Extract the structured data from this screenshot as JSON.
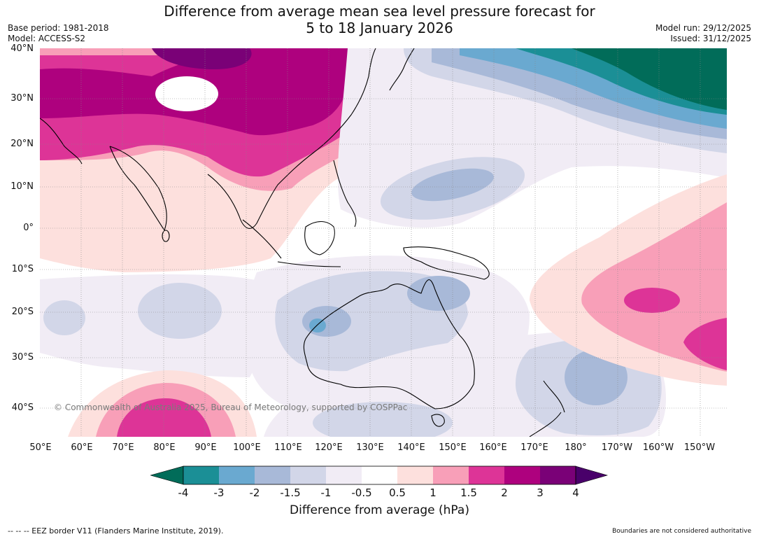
{
  "title_line1": "Difference from average mean sea level pressure forecast for",
  "title_line2": "5 to 18 January 2026",
  "meta_left": {
    "base_period": "Base period: 1981-2018",
    "model": "Model: ACCESS-S2"
  },
  "meta_right": {
    "model_run": "Model run: 29/12/2025",
    "issued": "Issued: 31/12/2025"
  },
  "lat_labels": [
    "40°N",
    "30°N",
    "20°N",
    "10°N",
    "0°",
    "10°S",
    "20°S",
    "30°S",
    "40°S"
  ],
  "lon_labels": [
    "50°E",
    "60°E",
    "70°E",
    "80°E",
    "90°E",
    "100°E",
    "110°E",
    "120°E",
    "130°E",
    "140°E",
    "150°E",
    "160°E",
    "170°E",
    "180°",
    "170°W",
    "160°W",
    "150°W"
  ],
  "copyright": "© Commonwealth of Australia 2025, Bureau of Meteorology, supported by COSPPac",
  "colorbar": {
    "ticks": [
      "-4",
      "-3",
      "-2",
      "-1.5",
      "-1",
      "-0.5",
      "0.5",
      "1",
      "1.5",
      "2",
      "3",
      "4"
    ],
    "colors": [
      "#1b8f96",
      "#6aa9d0",
      "#a8b9d8",
      "#d2d6e8",
      "#f1ecf5",
      "#ffffff",
      "#fde0dd",
      "#f89fb8",
      "#dd3497",
      "#ae017e",
      "#7a0177"
    ],
    "under_color": "#016c59",
    "over_color": "#49006a",
    "label": "Difference from average (hPa)"
  },
  "eez_note": "--  --  -- EEZ border V11 (Flanders Marine Institute, 2019).",
  "boundaries_note": "Boundaries are not considered authoritative"
}
